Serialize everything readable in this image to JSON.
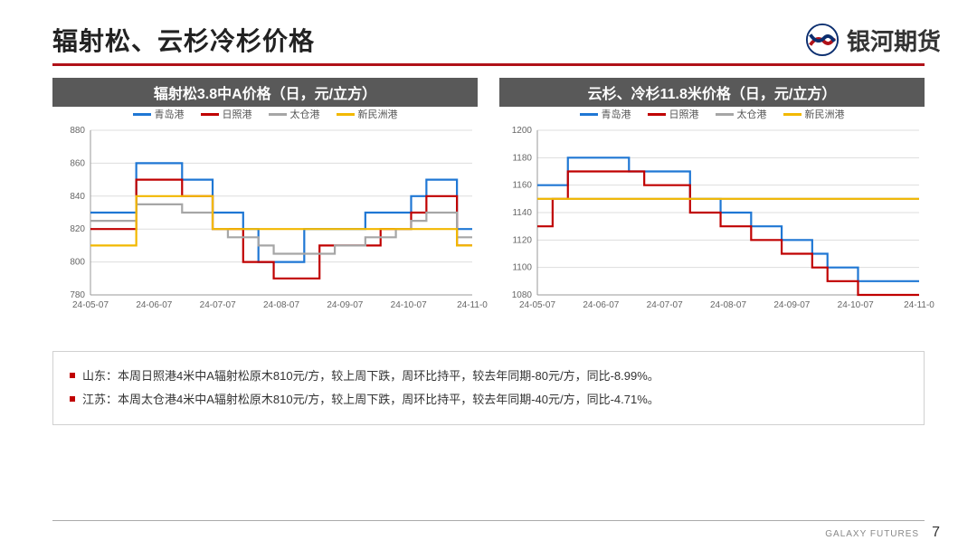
{
  "header": {
    "title": "辐射松、云杉冷杉价格",
    "brand_text": "银河期货"
  },
  "colors": {
    "accent": "#b01118",
    "title_bar_bg": "#595959",
    "title_bar_fg": "#ffffff",
    "grid": "#dddddd",
    "axis": "#999999",
    "text": "#666666",
    "note_bullet": "#c00000",
    "border": "#d0d0d0"
  },
  "chart_left": {
    "title": "辐射松3.8中A价格（日，元/立方）",
    "type": "line-step",
    "ylim": [
      780,
      880
    ],
    "ytick_step": 20,
    "x_labels": [
      "24-05-07",
      "24-06-07",
      "24-07-07",
      "24-08-07",
      "24-09-07",
      "24-10-07",
      "24-11-0"
    ],
    "x_count": 26,
    "series": [
      {
        "name": "青岛港",
        "color": "#1f77d4",
        "step": true,
        "y": [
          830,
          830,
          830,
          860,
          860,
          860,
          850,
          850,
          830,
          830,
          820,
          800,
          800,
          800,
          820,
          820,
          820,
          820,
          830,
          830,
          830,
          840,
          850,
          850,
          820,
          820
        ]
      },
      {
        "name": "日照港",
        "color": "#c00000",
        "step": true,
        "y": [
          820,
          820,
          820,
          850,
          850,
          850,
          840,
          840,
          820,
          820,
          800,
          800,
          790,
          790,
          790,
          810,
          810,
          810,
          810,
          820,
          820,
          830,
          840,
          840,
          810,
          810
        ]
      },
      {
        "name": "太仓港",
        "color": "#a6a6a6",
        "step": true,
        "y": [
          825,
          825,
          825,
          835,
          835,
          835,
          830,
          830,
          820,
          815,
          815,
          810,
          805,
          805,
          805,
          805,
          810,
          810,
          815,
          815,
          820,
          825,
          830,
          830,
          815,
          815
        ]
      },
      {
        "name": "新民洲港",
        "color": "#f2b800",
        "step": true,
        "y": [
          810,
          810,
          810,
          840,
          840,
          840,
          840,
          840,
          820,
          820,
          820,
          820,
          820,
          820,
          820,
          820,
          820,
          820,
          820,
          820,
          820,
          820,
          820,
          820,
          810,
          810
        ]
      }
    ],
    "legend_fontsize": 11,
    "label_fontsize": 10,
    "line_width": 2.2,
    "background_color": "#ffffff"
  },
  "chart_right": {
    "title": "云杉、冷杉11.8米价格（日，元/立方）",
    "type": "line-step",
    "ylim": [
      1080,
      1200
    ],
    "ytick_step": 20,
    "x_labels": [
      "24-05-07",
      "24-06-07",
      "24-07-07",
      "24-08-07",
      "24-09-07",
      "24-10-07",
      "24-11-0"
    ],
    "x_count": 26,
    "series": [
      {
        "name": "青岛港",
        "color": "#1f77d4",
        "step": true,
        "y": [
          1160,
          1160,
          1180,
          1180,
          1180,
          1180,
          1170,
          1170,
          1170,
          1170,
          1150,
          1150,
          1140,
          1140,
          1130,
          1130,
          1120,
          1120,
          1110,
          1100,
          1100,
          1090,
          1090,
          1090,
          1090,
          1090
        ]
      },
      {
        "name": "日照港",
        "color": "#c00000",
        "step": true,
        "y": [
          1130,
          1150,
          1170,
          1170,
          1170,
          1170,
          1170,
          1160,
          1160,
          1160,
          1140,
          1140,
          1130,
          1130,
          1120,
          1120,
          1110,
          1110,
          1100,
          1090,
          1090,
          1080,
          1080,
          1080,
          1080,
          1080
        ]
      },
      {
        "name": "太仓港",
        "color": "#a6a6a6",
        "step": true,
        "y": [
          1150,
          1150,
          1150,
          1150,
          1150,
          1150,
          1150,
          1150,
          1150,
          1150,
          1150,
          1150,
          1150,
          1150,
          1150,
          1150,
          1150,
          1150,
          1150,
          1150,
          1150,
          1150,
          1150,
          1150,
          1150,
          1150
        ]
      },
      {
        "name": "新民洲港",
        "color": "#f2b800",
        "step": true,
        "y": [
          1150,
          1150,
          1150,
          1150,
          1150,
          1150,
          1150,
          1150,
          1150,
          1150,
          1150,
          1150,
          1150,
          1150,
          1150,
          1150,
          1150,
          1150,
          1150,
          1150,
          1150,
          1150,
          1150,
          1150,
          1150,
          1150
        ]
      }
    ],
    "legend_fontsize": 11,
    "label_fontsize": 10,
    "line_width": 2.2,
    "background_color": "#ffffff"
  },
  "notes": [
    "山东：本周日照港4米中A辐射松原木810元/方，较上周下跌，周环比持平，较去年同期-80元/方，同比-8.99%。",
    "江苏：本周太仓港4米中A辐射松原木810元/方，较上周下跌，周环比持平，较去年同期-40元/方，同比-4.71%。"
  ],
  "footer": {
    "small": "GALAXY  FUTURES",
    "page": "7"
  }
}
